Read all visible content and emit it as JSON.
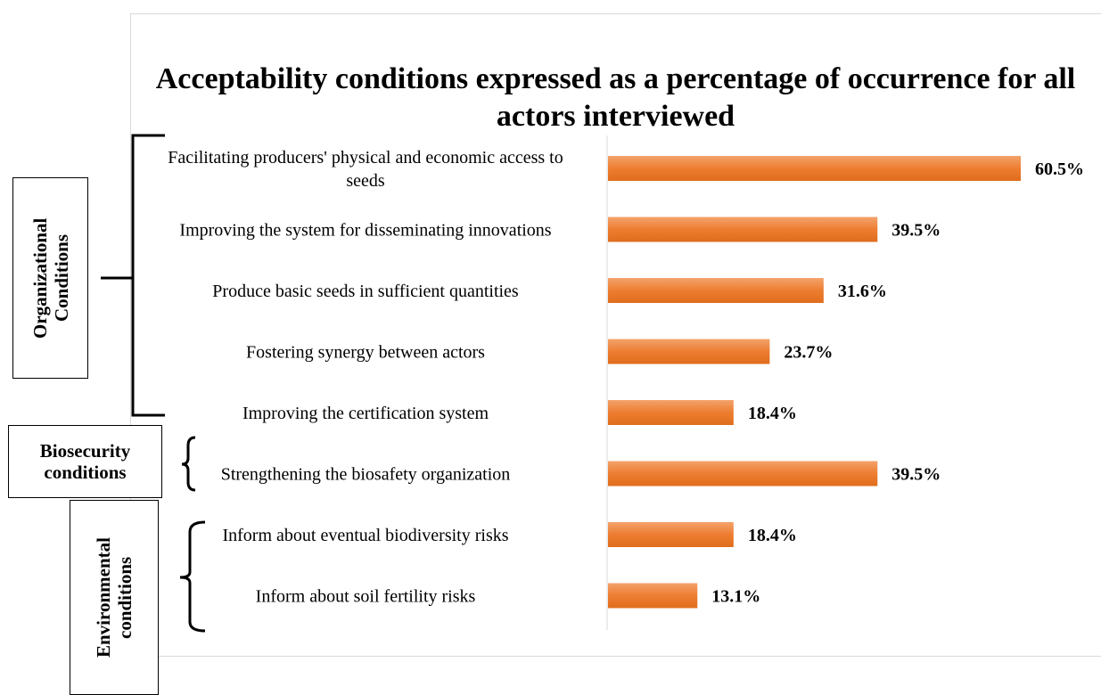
{
  "chart_data": {
    "type": "bar",
    "orientation": "horizontal",
    "title": "Acceptability conditions expressed as a percentage of occurrence for all actors interviewed",
    "categories": [
      "Facilitating producers' physical and economic access to seeds",
      "Improving the system for disseminating innovations",
      "Produce basic seeds in sufficient quantities",
      "Fostering synergy between actors",
      "Improving the certification system",
      "Strengthening the biosafety organization",
      "Inform about eventual biodiversity risks",
      "Inform about soil fertility risks"
    ],
    "values": [
      60.5,
      39.5,
      31.6,
      23.7,
      18.4,
      39.5,
      18.4,
      13.1
    ],
    "value_labels": [
      "60.5%",
      "39.5%",
      "31.6%",
      "23.7%",
      "18.4%",
      "39.5%",
      "18.4%",
      "13.1%"
    ],
    "xlim": [
      0,
      60.5
    ],
    "bar_color": "#ED7D31",
    "grid": false,
    "groups": [
      {
        "label": "Organizational Conditions",
        "members": [
          0,
          1,
          2,
          3,
          4
        ]
      },
      {
        "label": "Biosecurity conditions",
        "members": [
          5
        ]
      },
      {
        "label": "Environmental conditions",
        "members": [
          6,
          7
        ]
      }
    ]
  }
}
